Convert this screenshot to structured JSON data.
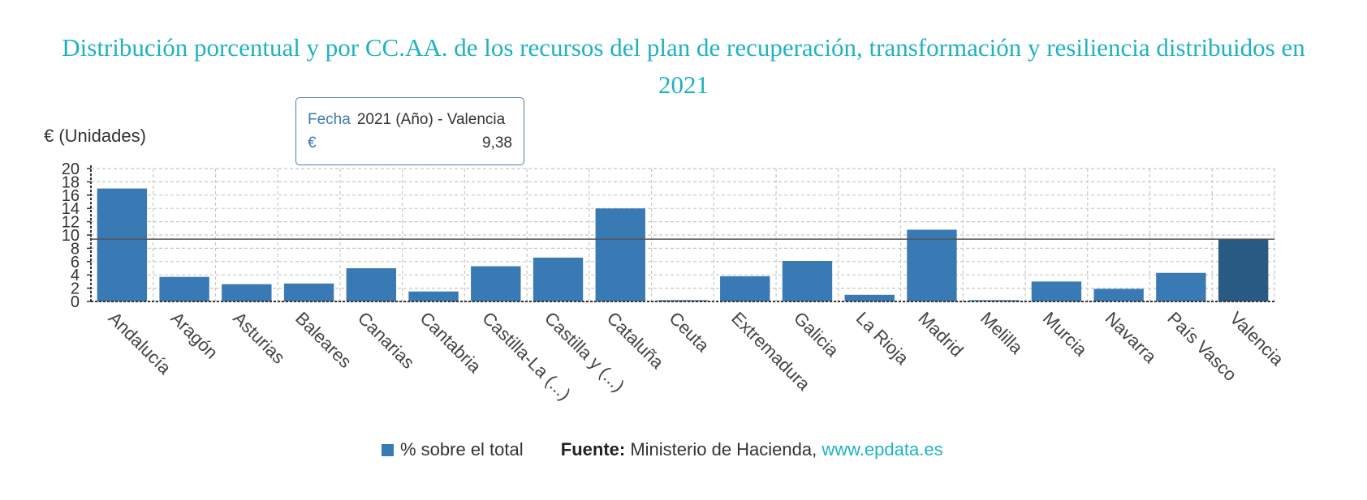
{
  "chart_data": {
    "type": "bar",
    "title": "Distribución porcentual y por CC.AA. de los recursos del plan de recuperación, transformación y resiliencia distribuidos en 2021",
    "ylabel": "€ (Unidades)",
    "ylim": [
      0,
      20
    ],
    "yticks": [
      0,
      2,
      4,
      6,
      8,
      10,
      12,
      14,
      16,
      18,
      20
    ],
    "grid": true,
    "reference_line": 9.38,
    "highlight_index": 18,
    "categories": [
      "Andalucía",
      "Aragón",
      "Asturias",
      "Baleares",
      "Canarias",
      "Cantabria",
      "Castilla-La (...)",
      "Castilla y (...)",
      "Cataluña",
      "Ceuta",
      "Extremadura",
      "Galicia",
      "La Rioja",
      "Madrid",
      "Melilla",
      "Murcia",
      "Navarra",
      "País Vasco",
      "Valencia"
    ],
    "series": [
      {
        "name": "% sobre el total",
        "values": [
          17.0,
          3.7,
          2.6,
          2.7,
          5.0,
          1.5,
          5.3,
          6.6,
          14.0,
          0.2,
          3.8,
          6.1,
          1.0,
          10.8,
          0.2,
          3.0,
          1.9,
          4.3,
          9.38
        ]
      }
    ],
    "legend_position": "bottom",
    "colors": {
      "bar": "#3a7ab4",
      "highlight": "#285a84",
      "grid": "#c8c8c8",
      "axis": "#333333"
    }
  },
  "tooltip": {
    "date_key": "Fecha",
    "date_value": "2021 (Año) - Valencia",
    "value_key": "€",
    "value": "9,38"
  },
  "footer": {
    "source_label": "Fuente:",
    "source_text": "Ministerio de Hacienda,",
    "source_link": "www.epdata.es"
  }
}
